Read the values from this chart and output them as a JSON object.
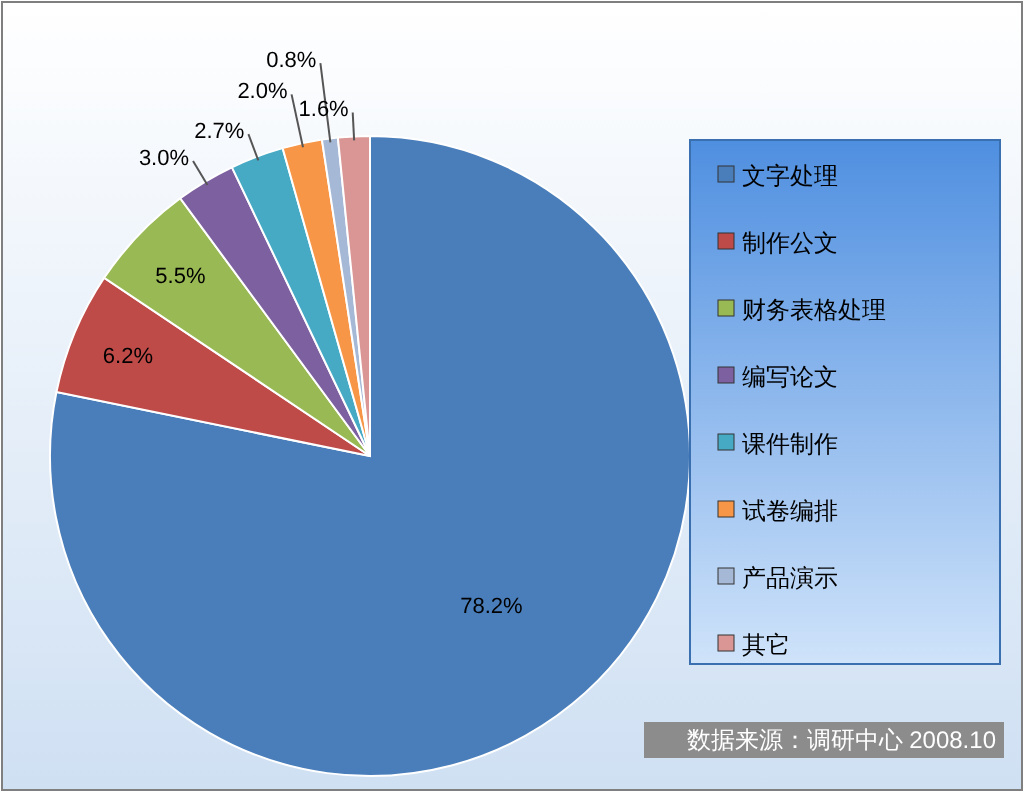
{
  "chart_data": {
    "type": "pie",
    "categories": [
      "文字处理",
      "制作公文",
      "财务表格处理",
      "编写论文",
      "课件制作",
      "试卷编排",
      "产品演示",
      "其它"
    ],
    "values": [
      78.2,
      6.2,
      5.5,
      3.0,
      2.7,
      2.0,
      0.8,
      1.6
    ],
    "colors": [
      "#4a7ebb",
      "#be4b48",
      "#98b954",
      "#7d60a0",
      "#46aac5",
      "#f79646",
      "#a5b9d7",
      "#d99694"
    ],
    "value_labels": [
      "78.2%",
      "6.2%",
      "5.5%",
      "3.0%",
      "2.7%",
      "2.0%",
      "0.8%",
      "1.6%"
    ],
    "legend": "right",
    "annotations": [
      "数据来源：调研中心 2008.10"
    ]
  }
}
